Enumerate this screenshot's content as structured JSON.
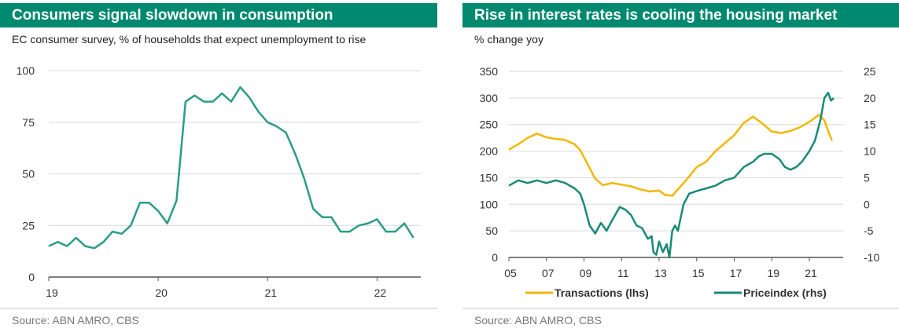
{
  "left_panel": {
    "title": "Consumers signal slowdown in consumption",
    "subtitle": "EC consumer survey, % of households that expect unemployment to rise",
    "source": "Source: ABN AMRO, CBS"
  },
  "right_panel": {
    "title": "Rise in interest rates is cooling the housing market",
    "subtitle": "% change yoy",
    "source": "Source: ABN AMRO, CBS"
  },
  "chart_data": [
    {
      "type": "line",
      "title": "Consumers signal slowdown in consumption",
      "subtitle": "EC consumer survey, % of households that expect unemployment to rise",
      "xlim": [
        2019,
        2022.4
      ],
      "ylim": [
        0,
        100
      ],
      "xticks": [
        {
          "v": 2019,
          "label": "19"
        },
        {
          "v": 2020,
          "label": "20"
        },
        {
          "v": 2021,
          "label": "21"
        },
        {
          "v": 2022,
          "label": "22"
        }
      ],
      "yticks": [
        {
          "v": 0,
          "label": "0"
        },
        {
          "v": 25,
          "label": "25"
        },
        {
          "v": 50,
          "label": "50"
        },
        {
          "v": 75,
          "label": "75"
        },
        {
          "v": 100,
          "label": "100"
        }
      ],
      "grid": true,
      "color": "#2a9d86",
      "series": [
        {
          "name": "",
          "x": [
            2019.0,
            2019.083,
            2019.167,
            2019.25,
            2019.333,
            2019.417,
            2019.5,
            2019.583,
            2019.667,
            2019.75,
            2019.833,
            2019.917,
            2020.0,
            2020.083,
            2020.167,
            2020.25,
            2020.333,
            2020.417,
            2020.5,
            2020.583,
            2020.667,
            2020.75,
            2020.833,
            2020.917,
            2021.0,
            2021.083,
            2021.167,
            2021.25,
            2021.333,
            2021.417,
            2021.5,
            2021.583,
            2021.667,
            2021.75,
            2021.833,
            2021.917,
            2022.0,
            2022.083,
            2022.167,
            2022.25,
            2022.333
          ],
          "y": [
            15,
            17,
            15,
            19,
            15,
            14,
            17,
            22,
            21,
            25,
            36,
            36,
            32,
            26,
            37,
            85,
            88,
            85,
            85,
            89,
            85,
            92,
            87,
            80,
            75,
            73,
            70,
            60,
            48,
            33,
            29,
            29,
            22,
            22,
            25,
            26,
            28,
            22,
            22,
            26,
            19
          ]
        }
      ]
    },
    {
      "type": "line",
      "title": "Rise in interest rates is cooling the housing market",
      "subtitle": "% change yoy",
      "xlim": [
        2005,
        2022.8
      ],
      "ylim_left": [
        0,
        350
      ],
      "ylim_right": [
        -10,
        25
      ],
      "xticks": [
        {
          "v": 2005,
          "label": "05"
        },
        {
          "v": 2007,
          "label": "07"
        },
        {
          "v": 2009,
          "label": "09"
        },
        {
          "v": 2011,
          "label": "11"
        },
        {
          "v": 2013,
          "label": "13"
        },
        {
          "v": 2015,
          "label": "15"
        },
        {
          "v": 2017,
          "label": "17"
        },
        {
          "v": 2019,
          "label": "19"
        },
        {
          "v": 2021,
          "label": "21"
        }
      ],
      "yticks_left": [
        {
          "v": 0,
          "label": "0"
        },
        {
          "v": 50,
          "label": "50"
        },
        {
          "v": 100,
          "label": "100"
        },
        {
          "v": 150,
          "label": "150"
        },
        {
          "v": 200,
          "label": "200"
        },
        {
          "v": 250,
          "label": "250"
        },
        {
          "v": 300,
          "label": "300"
        },
        {
          "v": 350,
          "label": "350"
        }
      ],
      "yticks_right": [
        {
          "v": -10,
          "label": "-10"
        },
        {
          "v": -5,
          "label": "-5"
        },
        {
          "v": 0,
          "label": "0"
        },
        {
          "v": 5,
          "label": "5"
        },
        {
          "v": 10,
          "label": "10"
        },
        {
          "v": 15,
          "label": "15"
        },
        {
          "v": 20,
          "label": "20"
        },
        {
          "v": 25,
          "label": "25"
        }
      ],
      "grid": true,
      "legend_position": "bottom",
      "series": [
        {
          "name": "Transactions (lhs)",
          "axis": "left",
          "color": "#f2b705",
          "x": [
            2005.0,
            2005.5,
            2006.0,
            2006.5,
            2007.0,
            2007.5,
            2008.0,
            2008.5,
            2008.8,
            2009.2,
            2009.6,
            2010.0,
            2010.5,
            2011.0,
            2011.5,
            2012.0,
            2012.5,
            2013.0,
            2013.3,
            2013.7,
            2014.0,
            2014.5,
            2015.0,
            2015.5,
            2016.0,
            2016.5,
            2017.0,
            2017.5,
            2018.0,
            2018.5,
            2019.0,
            2019.5,
            2020.0,
            2020.5,
            2021.0,
            2021.5,
            2021.8,
            2022.0,
            2022.2
          ],
          "y": [
            203,
            213,
            225,
            233,
            226,
            223,
            221,
            213,
            202,
            175,
            148,
            136,
            140,
            137,
            134,
            128,
            124,
            126,
            118,
            116,
            128,
            148,
            170,
            180,
            200,
            215,
            230,
            253,
            265,
            252,
            237,
            234,
            238,
            245,
            255,
            268,
            258,
            238,
            220
          ]
        },
        {
          "name": "Priceindex (rhs)",
          "axis": "right",
          "color": "#1a8a78",
          "x": [
            2005.0,
            2005.5,
            2006.0,
            2006.5,
            2007.0,
            2007.5,
            2008.0,
            2008.5,
            2008.8,
            2009.0,
            2009.3,
            2009.6,
            2009.9,
            2010.2,
            2010.5,
            2010.9,
            2011.2,
            2011.5,
            2011.8,
            2012.1,
            2012.4,
            2012.6,
            2012.7,
            2012.85,
            2013.0,
            2013.2,
            2013.4,
            2013.55,
            2013.7,
            2013.85,
            2014.0,
            2014.3,
            2014.6,
            2015.0,
            2015.5,
            2016.0,
            2016.5,
            2017.0,
            2017.5,
            2018.0,
            2018.3,
            2018.6,
            2019.0,
            2019.4,
            2019.7,
            2020.0,
            2020.3,
            2020.6,
            2021.0,
            2021.3,
            2021.6,
            2021.8,
            2022.0,
            2022.15,
            2022.3
          ],
          "y": [
            3.5,
            4.5,
            4.0,
            4.5,
            4.0,
            4.5,
            4.0,
            3.0,
            2.0,
            0.0,
            -4.0,
            -5.5,
            -3.5,
            -5.0,
            -3.0,
            -0.5,
            -1.0,
            -2.0,
            -4.0,
            -4.5,
            -6.5,
            -6.0,
            -9.0,
            -9.5,
            -7.0,
            -9.0,
            -7.5,
            -10.0,
            -5.0,
            -4.0,
            -5.0,
            0.0,
            2.0,
            2.5,
            3.0,
            3.5,
            4.5,
            5.0,
            7.0,
            8.0,
            9.0,
            9.5,
            9.5,
            8.5,
            7.0,
            6.5,
            7.0,
            8.0,
            10.0,
            12.0,
            16.0,
            20.0,
            21.0,
            19.5,
            20.0
          ]
        }
      ]
    }
  ]
}
